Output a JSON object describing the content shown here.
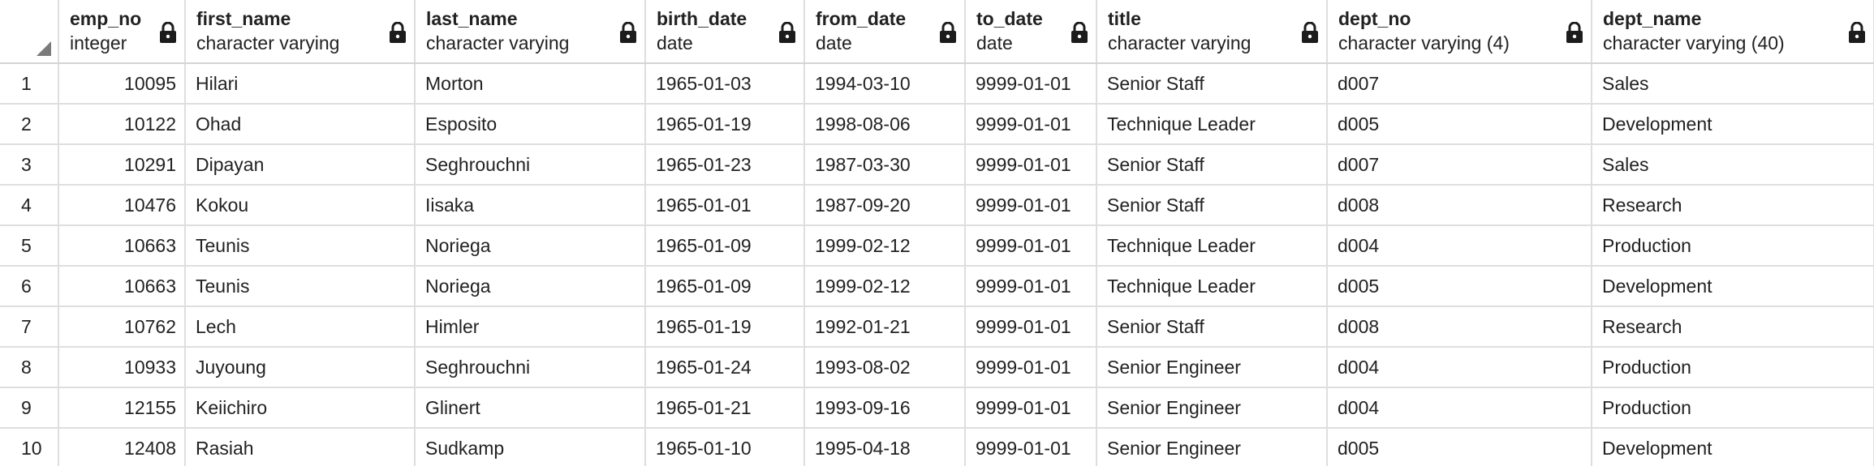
{
  "columns": [
    {
      "name": "emp_no",
      "type": "integer"
    },
    {
      "name": "first_name",
      "type": "character varying"
    },
    {
      "name": "last_name",
      "type": "character varying"
    },
    {
      "name": "birth_date",
      "type": "date"
    },
    {
      "name": "from_date",
      "type": "date"
    },
    {
      "name": "to_date",
      "type": "date"
    },
    {
      "name": "title",
      "type": "character varying"
    },
    {
      "name": "dept_no",
      "type": "character varying (4)"
    },
    {
      "name": "dept_name",
      "type": "character varying (40)"
    }
  ],
  "rows": [
    {
      "n": "1",
      "cells": [
        "10095",
        "Hilari",
        "Morton",
        "1965-01-03",
        "1994-03-10",
        "9999-01-01",
        "Senior Staff",
        "d007",
        "Sales"
      ]
    },
    {
      "n": "2",
      "cells": [
        "10122",
        "Ohad",
        "Esposito",
        "1965-01-19",
        "1998-08-06",
        "9999-01-01",
        "Technique Leader",
        "d005",
        "Development"
      ]
    },
    {
      "n": "3",
      "cells": [
        "10291",
        "Dipayan",
        "Seghrouchni",
        "1965-01-23",
        "1987-03-30",
        "9999-01-01",
        "Senior Staff",
        "d007",
        "Sales"
      ]
    },
    {
      "n": "4",
      "cells": [
        "10476",
        "Kokou",
        "Iisaka",
        "1965-01-01",
        "1987-09-20",
        "9999-01-01",
        "Senior Staff",
        "d008",
        "Research"
      ]
    },
    {
      "n": "5",
      "cells": [
        "10663",
        "Teunis",
        "Noriega",
        "1965-01-09",
        "1999-02-12",
        "9999-01-01",
        "Technique Leader",
        "d004",
        "Production"
      ]
    },
    {
      "n": "6",
      "cells": [
        "10663",
        "Teunis",
        "Noriega",
        "1965-01-09",
        "1999-02-12",
        "9999-01-01",
        "Technique Leader",
        "d005",
        "Development"
      ]
    },
    {
      "n": "7",
      "cells": [
        "10762",
        "Lech",
        "Himler",
        "1965-01-19",
        "1992-01-21",
        "9999-01-01",
        "Senior Staff",
        "d008",
        "Research"
      ]
    },
    {
      "n": "8",
      "cells": [
        "10933",
        "Juyoung",
        "Seghrouchni",
        "1965-01-24",
        "1993-08-02",
        "9999-01-01",
        "Senior Engineer",
        "d004",
        "Production"
      ]
    },
    {
      "n": "9",
      "cells": [
        "12155",
        "Keiichiro",
        "Glinert",
        "1965-01-21",
        "1993-09-16",
        "9999-01-01",
        "Senior Engineer",
        "d004",
        "Production"
      ]
    },
    {
      "n": "10",
      "cells": [
        "12408",
        "Rasiah",
        "Sudkamp",
        "1965-01-10",
        "1995-04-18",
        "9999-01-01",
        "Senior Engineer",
        "d005",
        "Development"
      ]
    }
  ],
  "icons": {
    "column_header": "lock-icon",
    "corner": "select-all-icon"
  }
}
